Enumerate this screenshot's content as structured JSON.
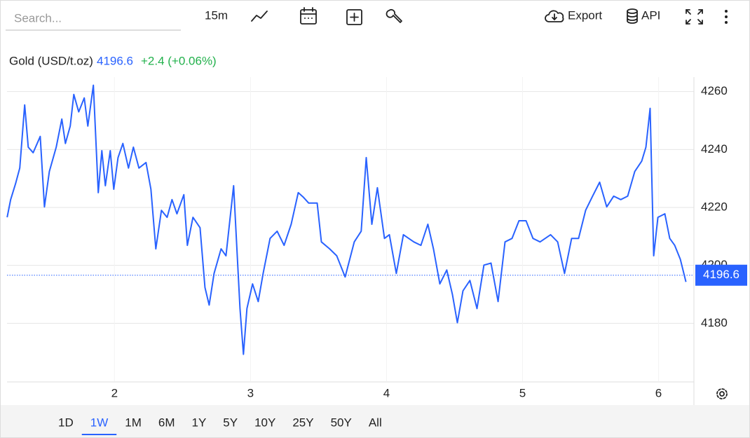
{
  "toolbar": {
    "search_placeholder": "Search...",
    "interval": "15m",
    "export": "Export",
    "api": "API"
  },
  "chart_data": {
    "type": "line",
    "title": "Gold (USD/t.oz)",
    "last_price": 4196.6,
    "change": "+2.4 (+0.06%)",
    "color": "#2962ff",
    "x": [
      1.211,
      1.237,
      1.273,
      1.304,
      1.34,
      1.366,
      1.402,
      1.454,
      1.485,
      1.521,
      1.572,
      1.613,
      1.639,
      1.675,
      1.701,
      1.737,
      1.778,
      1.804,
      1.845,
      1.881,
      1.907,
      1.933,
      1.969,
      1.995,
      2.026,
      2.062,
      2.103,
      2.139,
      2.18,
      2.232,
      2.268,
      2.304,
      2.345,
      2.387,
      2.423,
      2.459,
      2.51,
      2.536,
      2.577,
      2.629,
      2.665,
      2.696,
      2.732,
      2.784,
      2.82,
      2.876,
      2.923,
      2.948,
      2.974,
      3.015,
      3.057,
      3.093,
      3.144,
      3.196,
      3.247,
      3.299,
      3.351,
      3.387,
      3.428,
      3.49,
      3.521,
      3.582,
      3.634,
      3.696,
      3.763,
      3.814,
      3.851,
      3.892,
      3.933,
      3.985,
      4.021,
      4.072,
      4.124,
      4.201,
      4.253,
      4.304,
      4.345,
      4.392,
      4.443,
      4.485,
      4.521,
      4.562,
      4.613,
      4.665,
      4.716,
      4.768,
      4.82,
      4.871,
      4.923,
      4.974,
      5.026,
      5.077,
      5.129,
      5.206,
      5.258,
      5.309,
      5.361,
      5.412,
      5.464,
      5.515,
      5.567,
      5.619,
      5.67,
      5.722,
      5.773,
      5.825,
      5.876,
      5.907,
      5.938,
      5.964,
      5.995,
      6.046,
      6.082,
      6.119,
      6.16,
      6.201
    ],
    "values": [
      4216.6,
      4222.7,
      4228.2,
      4233.6,
      4255.4,
      4240.8,
      4238.9,
      4244.5,
      4220.2,
      4232.4,
      4240.8,
      4250.5,
      4242.1,
      4248.1,
      4259.0,
      4253.0,
      4257.8,
      4248.1,
      4262.2,
      4225.1,
      4239.6,
      4227.5,
      4239.6,
      4226.3,
      4237.2,
      4242.1,
      4233.6,
      4240.8,
      4233.6,
      4235.5,
      4226.3,
      4205.7,
      4219.0,
      4216.6,
      4222.7,
      4217.8,
      4224.4,
      4206.9,
      4216.6,
      4213.0,
      4192.4,
      4186.3,
      4197.2,
      4205.7,
      4203.3,
      4227.5,
      4185.1,
      4169.3,
      4185.1,
      4193.6,
      4187.5,
      4197.2,
      4209.3,
      4211.8,
      4206.9,
      4214.2,
      4225.1,
      4223.6,
      4221.5,
      4221.5,
      4208.1,
      4205.7,
      4203.3,
      4196.0,
      4208.1,
      4211.8,
      4237.2,
      4214.2,
      4226.8,
      4209.3,
      4210.6,
      4197.2,
      4210.6,
      4208.1,
      4206.9,
      4214.2,
      4205.7,
      4193.6,
      4198.4,
      4189.9,
      4180.2,
      4191.2,
      4194.8,
      4185.1,
      4200.1,
      4200.8,
      4187.5,
      4208.1,
      4209.3,
      4215.4,
      4215.4,
      4209.3,
      4208.1,
      4210.6,
      4208.1,
      4197.2,
      4209.3,
      4209.3,
      4219.0,
      4223.9,
      4228.7,
      4220.2,
      4223.9,
      4222.7,
      4223.9,
      4232.4,
      4236.0,
      4240.8,
      4254.2,
      4203.3,
      4216.6,
      4217.8,
      4209.3,
      4206.9,
      4202.1,
      4194.3
    ],
    "xlim": [
      1.21,
      6.26
    ],
    "ylim": [
      4160,
      4265
    ],
    "xticks": [
      2,
      3,
      4,
      5,
      6
    ],
    "yticks": [
      4180,
      4200,
      4220,
      4240,
      4260
    ],
    "grid": true
  },
  "range_buttons": {
    "items": [
      "1D",
      "1W",
      "1M",
      "6M",
      "1Y",
      "5Y",
      "10Y",
      "25Y",
      "50Y",
      "All"
    ],
    "active": 1
  }
}
